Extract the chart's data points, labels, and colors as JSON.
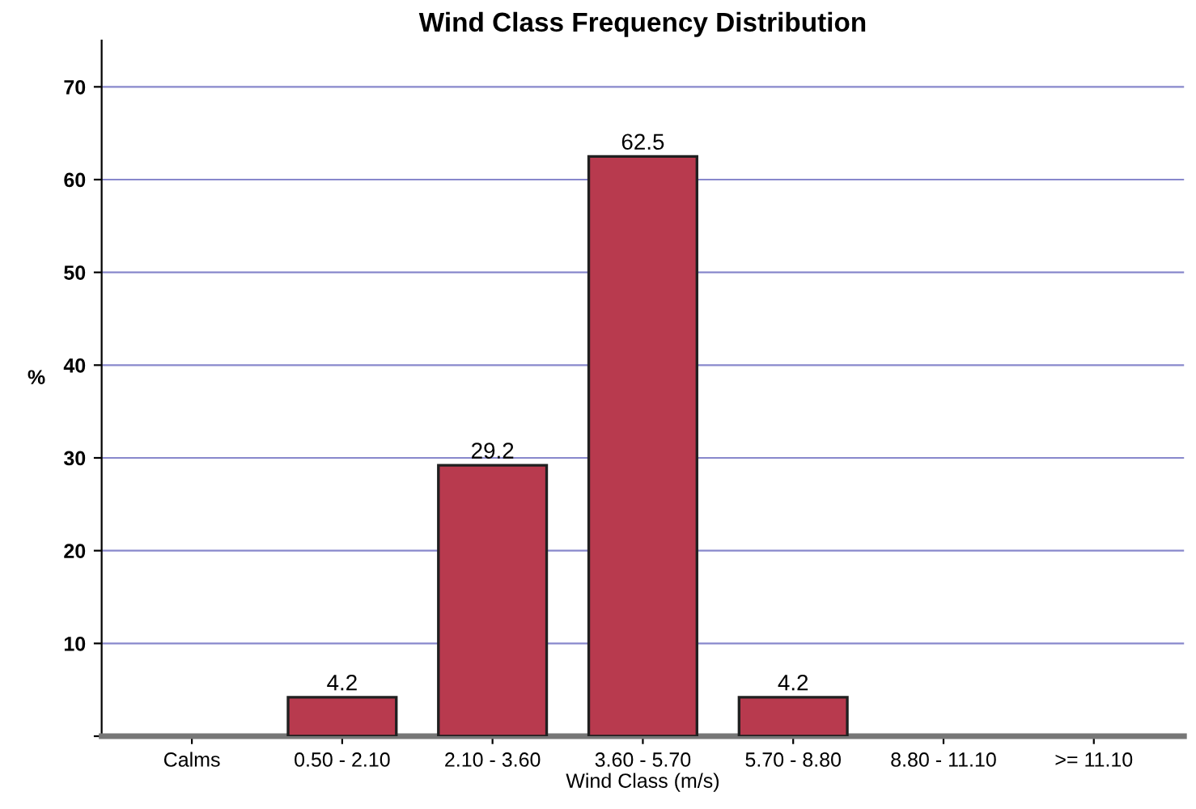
{
  "chart_data": {
    "type": "bar",
    "title": "Wind Class Frequency Distribution",
    "xlabel": "Wind Class (m/s)",
    "ylabel": "%",
    "categories": [
      "Calms",
      "0.50 - 2.10",
      "2.10 - 3.60",
      "3.60 - 5.70",
      "5.70 - 8.80",
      "8.80 - 11.10",
      ">= 11.10"
    ],
    "values": [
      null,
      4.2,
      29.2,
      62.5,
      4.2,
      null,
      null
    ],
    "value_labels": [
      null,
      "4.2",
      "29.2",
      "62.5",
      "4.2",
      null,
      null
    ],
    "color": "#b83a4e",
    "ylim": [
      0,
      75
    ],
    "yticks": [
      {
        "value": 0,
        "label": null
      },
      10,
      20,
      30,
      40,
      50,
      60,
      70
    ],
    "grid": "y"
  }
}
